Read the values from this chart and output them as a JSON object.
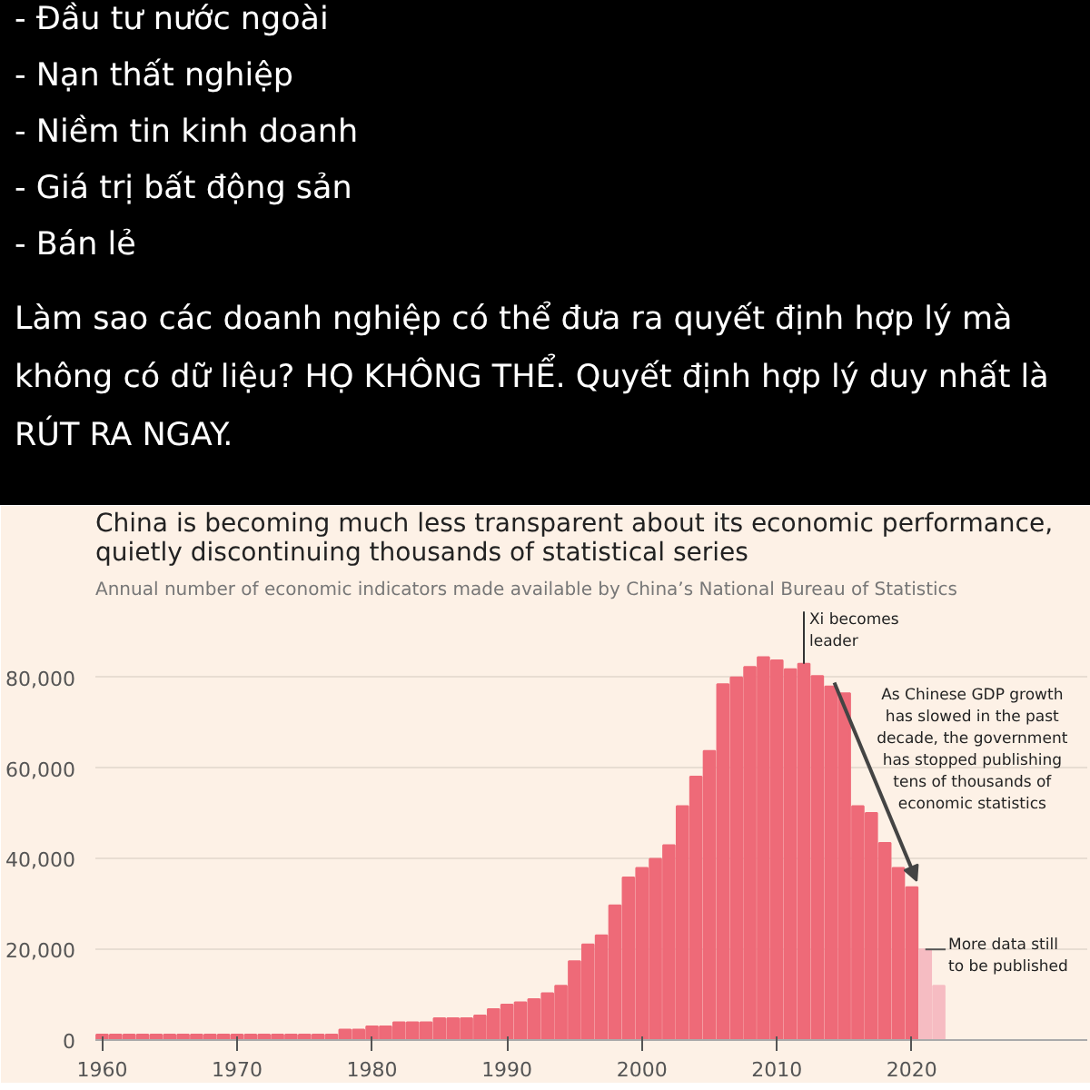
{
  "chart_data": {
    "type": "bar",
    "title": "China is becoming much less transparent about its economic performance, quietly discontinuing thousands of statistical series",
    "subtitle": "Annual number of economic indicators made available by China’s National Bureau of Statistics",
    "annotations": [
      "- Đầu tư nước ngoài",
      "- Nạn thất nghiệp",
      "- Niềm tin kinh doanh",
      "- Giá trị bất động sản",
      "- Bán lẻ",
      "Làm sao các doanh nghiệp có thể đưa ra quyết định hợp lý mà không có dữ liệu? HỌ KHÔNG THỂ. Quyết định hợp lý duy nhất là RÚT RA NGAY.",
      {
        "text": "Xi becomes leader",
        "x": 2012,
        "y": 83000
      },
      "As Chinese GDP growth has slowed in the past decade, the government has stopped publishing tens of thousands of economic statistics",
      {
        "text": "More data still to be published",
        "x": 2021,
        "y": 20000
      }
    ],
    "x": [
      1960,
      1961,
      1962,
      1963,
      1964,
      1965,
      1966,
      1967,
      1968,
      1969,
      1970,
      1971,
      1972,
      1973,
      1974,
      1975,
      1976,
      1977,
      1978,
      1979,
      1980,
      1981,
      1982,
      1983,
      1984,
      1985,
      1986,
      1987,
      1988,
      1989,
      1990,
      1991,
      1992,
      1993,
      1994,
      1995,
      1996,
      1997,
      1998,
      1999,
      2000,
      2001,
      2002,
      2003,
      2004,
      2005,
      2006,
      2007,
      2008,
      2009,
      2010,
      2011,
      2012,
      2013,
      2014,
      2015,
      2016,
      2017,
      2018,
      2019,
      2020,
      2021,
      2022
    ],
    "values": [
      1200,
      1200,
      1200,
      1200,
      1200,
      1200,
      1200,
      1200,
      1200,
      1200,
      1200,
      1200,
      1200,
      1200,
      1200,
      1200,
      1200,
      1200,
      2300,
      2300,
      3000,
      3000,
      3900,
      3900,
      3900,
      4800,
      4800,
      4800,
      5400,
      6800,
      7800,
      8300,
      9000,
      10300,
      12000,
      17400,
      21100,
      23100,
      29700,
      35900,
      38000,
      40000,
      43000,
      51600,
      58100,
      63800,
      78500,
      80000,
      82300,
      84500,
      83800,
      81800,
      83000,
      80300,
      78000,
      76500,
      51600,
      50100,
      43500,
      38000,
      33700,
      20000,
      12000
    ],
    "colors": [
      "#ee6a78",
      "#ee6a78",
      "#ee6a78",
      "#ee6a78",
      "#ee6a78",
      "#ee6a78",
      "#ee6a78",
      "#ee6a78",
      "#ee6a78",
      "#ee6a78",
      "#ee6a78",
      "#ee6a78",
      "#ee6a78",
      "#ee6a78",
      "#ee6a78",
      "#ee6a78",
      "#ee6a78",
      "#ee6a78",
      "#ee6a78",
      "#ee6a78",
      "#ee6a78",
      "#ee6a78",
      "#ee6a78",
      "#ee6a78",
      "#ee6a78",
      "#ee6a78",
      "#ee6a78",
      "#ee6a78",
      "#ee6a78",
      "#ee6a78",
      "#ee6a78",
      "#ee6a78",
      "#ee6a78",
      "#ee6a78",
      "#ee6a78",
      "#ee6a78",
      "#ee6a78",
      "#ee6a78",
      "#ee6a78",
      "#ee6a78",
      "#ee6a78",
      "#ee6a78",
      "#ee6a78",
      "#ee6a78",
      "#ee6a78",
      "#ee6a78",
      "#ee6a78",
      "#ee6a78",
      "#ee6a78",
      "#ee6a78",
      "#ee6a78",
      "#ee6a78",
      "#ee6a78",
      "#ee6a78",
      "#ee6a78",
      "#ee6a78",
      "#ee6a78",
      "#ee6a78",
      "#ee6a78",
      "#ee6a78",
      "#ee6a78",
      "#f6bcc2",
      "#f6bcc2"
    ],
    "xlim": [
      1959.5,
      2033
    ],
    "ylim": [
      0,
      95000
    ],
    "xticks": [
      1960,
      1970,
      1980,
      1990,
      2000,
      2010,
      2020
    ],
    "yticks": [
      0,
      {
        "value": 20000,
        "label": "20,000"
      },
      {
        "value": 40000,
        "label": "40,000"
      },
      {
        "value": 60000,
        "label": "60,000"
      },
      {
        "value": 80000,
        "label": "80,000"
      }
    ],
    "grid": "y"
  }
}
